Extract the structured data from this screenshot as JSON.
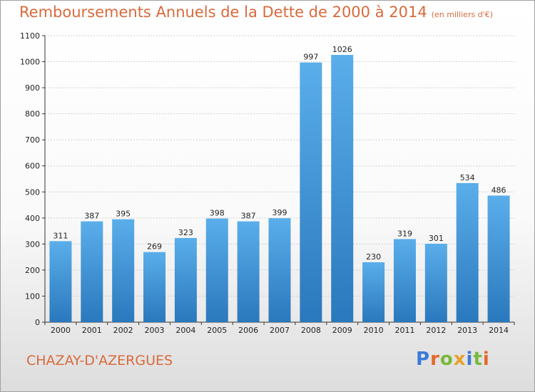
{
  "header": {
    "title": "Remboursements Annuels de la Dette de 2000 à 2014",
    "subtitle": "(en milliers d'€)"
  },
  "footer": {
    "city": "CHAZAY-D'AZERGUES",
    "logo": "Proxiti",
    "logo_letters": [
      {
        "ch": "P",
        "color": "#3a7bd5"
      },
      {
        "ch": "r",
        "color": "#e06a2c"
      },
      {
        "ch": "o",
        "color": "#79b93b"
      },
      {
        "ch": "x",
        "color": "#e8a12a"
      },
      {
        "ch": "i",
        "color": "#3a7bd5"
      },
      {
        "ch": "t",
        "color": "#79b93b"
      },
      {
        "ch": "i",
        "color": "#e06a2c"
      }
    ]
  },
  "chart_data": {
    "type": "bar",
    "title": "Remboursements Annuels de la Dette de 2000 à 2014",
    "subtitle": "(en milliers d'€)",
    "categories": [
      "2000",
      "2001",
      "2002",
      "2003",
      "2004",
      "2005",
      "2006",
      "2007",
      "2008",
      "2009",
      "2010",
      "2011",
      "2012",
      "2013",
      "2014"
    ],
    "values": [
      311,
      387,
      395,
      269,
      323,
      398,
      387,
      399,
      997,
      1026,
      230,
      319,
      301,
      534,
      486
    ],
    "yticks": [
      0,
      100,
      200,
      300,
      400,
      500,
      600,
      700,
      800,
      900,
      1000,
      1100
    ],
    "ylim": [
      0,
      1100
    ],
    "grid": true,
    "bar_color": "#4a9de0",
    "bar_color_dark": "#2f7fc4"
  }
}
